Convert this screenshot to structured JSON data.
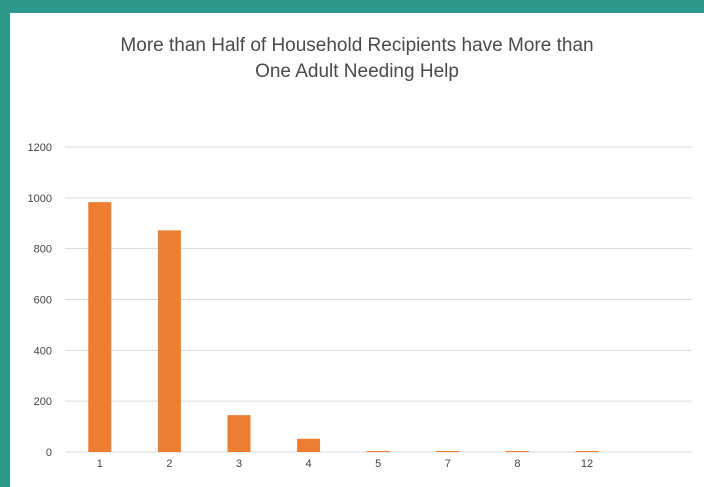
{
  "chart_data": {
    "type": "bar",
    "title": "More than Half of Household  Recipients have More than\nOne Adult Needing Help",
    "categories": [
      "1",
      "2",
      "3",
      "4",
      "5",
      "7",
      "8",
      "12"
    ],
    "values": [
      983,
      872,
      145,
      52,
      4,
      4,
      4,
      4
    ],
    "xlabel": "",
    "ylabel": "",
    "ylim": [
      0,
      1200
    ],
    "yticks": [
      0,
      200,
      400,
      600,
      800,
      1000,
      1200
    ],
    "grid": true,
    "legend": "none",
    "bar_color": "#ed7d31",
    "grid_color": "#d9d9d9"
  }
}
